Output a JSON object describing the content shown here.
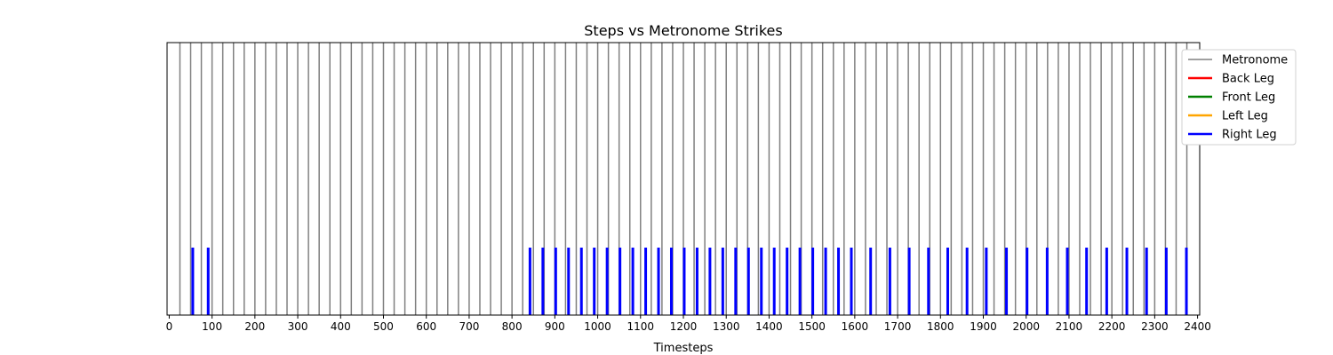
{
  "chart_data": {
    "type": "event-plot",
    "title": "Steps vs Metronome Strikes",
    "xlabel": "Timesteps",
    "ylabel": "",
    "xlim": [
      -5,
      2405
    ],
    "xticks": [
      0,
      100,
      200,
      300,
      400,
      500,
      600,
      700,
      800,
      900,
      1000,
      1100,
      1200,
      1300,
      1400,
      1500,
      1600,
      1700,
      1800,
      1900,
      2000,
      2100,
      2200,
      2300,
      2400
    ],
    "grid": false,
    "legend_position": "top-right, outside plot",
    "series": [
      {
        "name": "Metronome",
        "color": "#808080",
        "level": "full height",
        "x": [
          25,
          50,
          75,
          100,
          125,
          150,
          175,
          200,
          225,
          250,
          275,
          300,
          325,
          350,
          375,
          400,
          425,
          450,
          475,
          500,
          525,
          550,
          575,
          600,
          625,
          650,
          675,
          700,
          725,
          750,
          775,
          800,
          825,
          850,
          875,
          900,
          925,
          950,
          975,
          1000,
          1025,
          1050,
          1075,
          1100,
          1125,
          1150,
          1175,
          1200,
          1225,
          1250,
          1275,
          1300,
          1325,
          1350,
          1375,
          1400,
          1425,
          1450,
          1475,
          1500,
          1525,
          1550,
          1575,
          1600,
          1625,
          1650,
          1675,
          1700,
          1725,
          1750,
          1775,
          1800,
          1825,
          1850,
          1875,
          1900,
          1925,
          1950,
          1975,
          2000,
          2025,
          2050,
          2075,
          2100,
          2125,
          2150,
          2175,
          2200,
          2225,
          2250,
          2275,
          2300,
          2325,
          2350,
          2375
        ]
      },
      {
        "name": "Back Leg",
        "color": "#ff0000",
        "level": "short",
        "x": []
      },
      {
        "name": "Front Leg",
        "color": "#008000",
        "level": "short",
        "x": []
      },
      {
        "name": "Left Leg",
        "color": "#ffa500",
        "level": "short",
        "x": []
      },
      {
        "name": "Right Leg",
        "color": "#0000ff",
        "level": "short",
        "x": [
          55,
          91,
          842,
          872,
          902,
          932,
          962,
          992,
          1022,
          1052,
          1082,
          1112,
          1142,
          1172,
          1202,
          1232,
          1262,
          1292,
          1322,
          1352,
          1382,
          1412,
          1442,
          1472,
          1502,
          1532,
          1562,
          1592,
          1637,
          1682,
          1727,
          1772,
          1817,
          1862,
          1907,
          1954,
          2002,
          2049,
          2096,
          2141,
          2188,
          2235,
          2281,
          2327,
          2374
        ]
      }
    ]
  }
}
